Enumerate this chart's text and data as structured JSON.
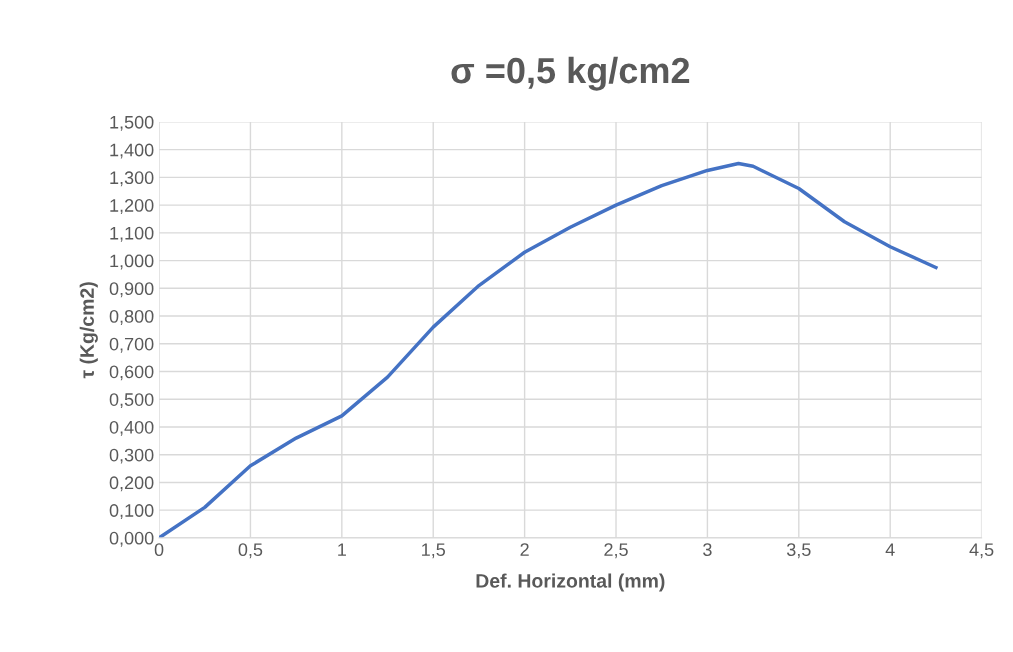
{
  "chart_data": {
    "type": "line",
    "title": "σ =0,5 kg/cm2",
    "xlabel": "Def. Horizontal (mm)",
    "ylabel": "τ (Kg/cm2)",
    "series": [
      {
        "color": "#4472c4",
        "x": [
          0,
          0.25,
          0.5,
          0.75,
          1,
          1.25,
          1.5,
          1.75,
          2,
          2.25,
          2.5,
          2.75,
          3,
          3.17,
          3.25,
          3.5,
          3.75,
          4,
          4.25
        ],
        "values": [
          0,
          0.11,
          0.26,
          0.36,
          0.44,
          0.58,
          0.76,
          0.91,
          1.03,
          1.12,
          1.2,
          1.27,
          1.325,
          1.35,
          1.34,
          1.26,
          1.14,
          1.05,
          0.975
        ]
      }
    ],
    "xlim": [
      0,
      4.5
    ],
    "xticks": [
      0,
      {
        "value": 0.5,
        "label": "0,5"
      },
      1,
      {
        "value": 1.5,
        "label": "1,5"
      },
      2,
      {
        "value": 2.5,
        "label": "2,5"
      },
      3,
      {
        "value": 3.5,
        "label": "3,5"
      },
      4,
      {
        "value": 4.5,
        "label": "4,5"
      }
    ],
    "ylim": [
      0,
      1.5
    ],
    "yticks": [
      {
        "value": 0,
        "label": "0,000"
      },
      {
        "value": 0.1,
        "label": "0,100"
      },
      {
        "value": 0.2,
        "label": "0,200"
      },
      {
        "value": 0.3,
        "label": "0,300"
      },
      {
        "value": 0.4,
        "label": "0,400"
      },
      {
        "value": 0.5,
        "label": "0,500"
      },
      {
        "value": 0.6,
        "label": "0,600"
      },
      {
        "value": 0.7,
        "label": "0,700"
      },
      {
        "value": 0.8,
        "label": "0,800"
      },
      {
        "value": 0.9,
        "label": "0,900"
      },
      {
        "value": 1.0,
        "label": "1,000"
      },
      {
        "value": 1.1,
        "label": "1,100"
      },
      {
        "value": 1.2,
        "label": "1,200"
      },
      {
        "value": 1.3,
        "label": "1,300"
      },
      {
        "value": 1.4,
        "label": "1,400"
      },
      {
        "value": 1.5,
        "label": "1,500"
      }
    ],
    "grid": true,
    "legend": false,
    "marker": "none",
    "line_style": "solid"
  }
}
